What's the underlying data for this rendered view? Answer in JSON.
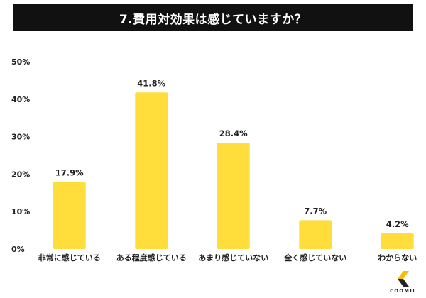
{
  "chart_data": {
    "type": "bar",
    "title": "7.費用対効果は感じていますか？",
    "categories": [
      "非常に感じている",
      "ある程度感じている",
      "あまり感じていない",
      "全く感じていない",
      "わからない"
    ],
    "values": [
      17.9,
      41.8,
      28.4,
      7.7,
      4.2
    ],
    "value_labels": [
      "17.9%",
      "41.8%",
      "28.4%",
      "7.7%",
      "4.2%"
    ],
    "yticks": [
      0,
      10,
      20,
      30,
      40,
      50
    ],
    "ytick_labels": [
      "0%",
      "10%",
      "20%",
      "30%",
      "40%",
      "50%"
    ],
    "ylim": [
      0,
      50
    ],
    "grid": false,
    "bar_color": "#ffdd3b"
  },
  "brand": {
    "name": "COOMIL",
    "logo_icon": "coomil-logo-icon",
    "logo_colors": [
      "#f2c200",
      "#222222"
    ]
  }
}
